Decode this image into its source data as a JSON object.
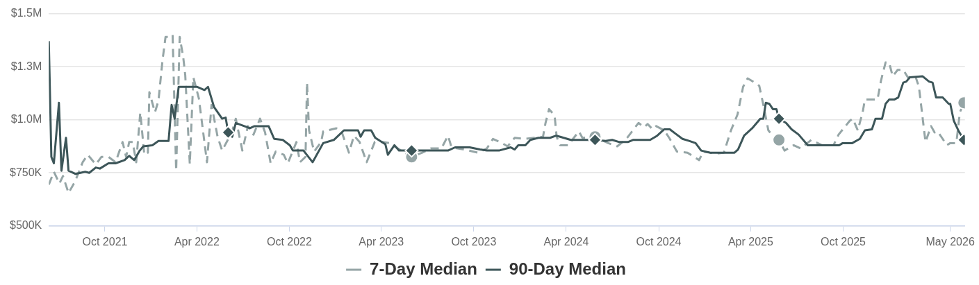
{
  "chart_data": {
    "type": "line",
    "xlim": [
      "2021-06-12",
      "2026-05-30"
    ],
    "ylim": [
      500000,
      1500000
    ],
    "yticks": [
      {
        "value": 500000,
        "label": "$500K"
      },
      {
        "value": 750000,
        "label": "$750K"
      },
      {
        "value": 1000000,
        "label": "$1.0M"
      },
      {
        "value": 1250000,
        "label": "$1.3M"
      },
      {
        "value": 1500000,
        "label": "$1.5M"
      }
    ],
    "xticks": [
      {
        "value": "2021-10-01",
        "label": "Oct 2021"
      },
      {
        "value": "2022-04-01",
        "label": "Apr 2022"
      },
      {
        "value": "2022-10-01",
        "label": "Oct 2022"
      },
      {
        "value": "2023-04-01",
        "label": "Apr 2023"
      },
      {
        "value": "2023-10-01",
        "label": "Oct 2023"
      },
      {
        "value": "2024-04-01",
        "label": "Apr 2024"
      },
      {
        "value": "2024-10-01",
        "label": "Oct 2024"
      },
      {
        "value": "2025-04-01",
        "label": "Apr 2025"
      },
      {
        "value": "2025-10-01",
        "label": "Oct 2025"
      },
      {
        "value": "2026-05-01",
        "label": "May 2026"
      }
    ],
    "grid": "y",
    "legend": "bottom",
    "marker": "none",
    "series": [
      {
        "name": "7-Day Median",
        "type": "line",
        "line_style": "dashed",
        "color": "#95a5a6",
        "x": [
          "2021-06-12",
          "2021-06-22",
          "2021-07-03",
          "2021-07-10",
          "2021-07-21",
          "2021-08-03",
          "2021-08-18",
          "2021-08-28",
          "2021-09-13",
          "2021-09-24",
          "2021-10-08",
          "2021-10-22",
          "2021-11-05",
          "2021-11-12",
          "2021-11-18",
          "2021-11-25",
          "2021-12-02",
          "2021-12-10",
          "2021-12-18",
          "2021-12-25",
          "2021-12-28",
          "2022-01-08",
          "2022-01-15",
          "2022-01-23",
          "2022-01-29",
          "2022-02-05",
          "2022-02-12",
          "2022-02-19",
          "2022-02-26",
          "2022-03-05",
          "2022-03-09",
          "2022-03-18",
          "2022-03-25",
          "2022-04-05",
          "2022-04-21",
          "2022-04-30",
          "2022-05-12",
          "2022-05-21",
          "2022-06-09",
          "2022-06-17",
          "2022-06-30",
          "2022-07-11",
          "2022-07-22",
          "2022-08-04",
          "2022-08-14",
          "2022-08-25",
          "2022-09-04",
          "2022-09-20",
          "2022-09-28",
          "2022-10-15",
          "2022-10-22",
          "2022-11-02",
          "2022-11-05",
          "2022-11-09",
          "2022-11-19",
          "2022-12-03",
          "2022-12-07",
          "2023-01-02",
          "2023-01-13",
          "2023-01-27",
          "2023-02-06",
          "2023-02-17",
          "2023-03-03",
          "2023-03-19",
          "2023-04-03",
          "2023-04-17",
          "2023-04-27",
          "2023-05-31",
          "2023-06-21",
          "2023-07-08",
          "2023-07-29",
          "2023-08-11",
          "2023-08-18",
          "2023-09-12",
          "2023-10-09",
          "2023-10-27",
          "2023-11-08",
          "2023-11-22",
          "2023-12-07",
          "2023-12-21",
          "2024-01-10",
          "2024-01-28",
          "2024-02-15",
          "2024-02-20",
          "2024-02-27",
          "2024-03-09",
          "2024-03-13",
          "2024-03-20",
          "2024-04-05",
          "2024-04-16",
          "2024-04-26",
          "2024-05-03",
          "2024-05-28",
          "2024-06-23",
          "2024-07-11",
          "2024-07-29",
          "2024-08-22",
          "2024-09-02",
          "2024-09-09",
          "2024-09-19",
          "2024-09-26",
          "2024-10-12",
          "2024-10-23",
          "2024-11-06",
          "2024-11-27",
          "2024-12-20",
          "2024-12-28",
          "2025-01-21",
          "2025-02-07",
          "2025-02-21",
          "2025-03-06",
          "2025-03-17",
          "2025-03-26",
          "2025-04-09",
          "2025-04-18",
          "2025-04-27",
          "2025-05-06",
          "2025-05-20",
          "2025-05-27",
          "2025-06-07",
          "2025-06-25",
          "2025-07-09",
          "2025-07-30",
          "2025-08-20",
          "2025-09-12",
          "2025-09-22",
          "2025-10-14",
          "2025-10-20",
          "2025-10-30",
          "2025-11-09",
          "2025-11-13",
          "2025-12-08",
          "2025-12-15",
          "2025-12-24",
          "2025-12-31",
          "2026-01-07",
          "2026-01-17",
          "2026-01-28",
          "2026-02-06",
          "2026-02-21",
          "2026-02-28",
          "2026-03-13",
          "2026-03-24",
          "2026-03-31",
          "2026-04-06",
          "2026-04-16",
          "2026-04-24",
          "2026-05-01",
          "2026-05-13",
          "2026-05-20",
          "2026-05-28"
        ],
        "values": [
          695000,
          755000,
          700000,
          735000,
          655000,
          710000,
          800000,
          835000,
          790000,
          825000,
          825000,
          800000,
          895000,
          825000,
          895000,
          895000,
          800000,
          1035000,
          835000,
          845000,
          1130000,
          1035000,
          1090000,
          1280000,
          1390000,
          1390000,
          1400000,
          760000,
          1390000,
          1295000,
          1210000,
          790000,
          1200000,
          1100000,
          800000,
          1070000,
          920000,
          855000,
          940000,
          1005000,
          855000,
          970000,
          930000,
          1005000,
          940000,
          795000,
          850000,
          835000,
          795000,
          895000,
          800000,
          825000,
          1175000,
          950000,
          850000,
          895000,
          945000,
          960000,
          940000,
          845000,
          925000,
          895000,
          800000,
          895000,
          895000,
          890000,
          875000,
          825000,
          845000,
          865000,
          865000,
          925000,
          870000,
          860000,
          845000,
          865000,
          910000,
          895000,
          875000,
          915000,
          910000,
          915000,
          920000,
          985000,
          1050000,
          1020000,
          920000,
          880000,
          880000,
          915000,
          945000,
          915000,
          920000,
          890000,
          875000,
          910000,
          985000,
          965000,
          980000,
          955000,
          970000,
          950000,
          910000,
          850000,
          845000,
          810000,
          850000,
          840000,
          845000,
          950000,
          1025000,
          1155000,
          1195000,
          1175000,
          1160000,
          1060000,
          950000,
          910000,
          905000,
          855000,
          880000,
          865000,
          905000,
          880000,
          880000,
          930000,
          995000,
          1005000,
          950000,
          1040000,
          1095000,
          1095000,
          1185000,
          1270000,
          1270000,
          1205000,
          1235000,
          1235000,
          1200000,
          1205000,
          1155000,
          895000,
          970000,
          940000,
          945000,
          910000,
          880000,
          890000,
          890000,
          1035000,
          1080000
        ]
      },
      {
        "name": "90-Day Median",
        "type": "line",
        "line_style": "solid",
        "color": "#3d5659",
        "x": [
          "2021-06-12",
          "2021-06-17",
          "2021-06-22",
          "2021-07-02",
          "2021-07-07",
          "2021-07-16",
          "2021-07-21",
          "2021-08-04",
          "2021-08-23",
          "2021-08-31",
          "2021-09-13",
          "2021-09-21",
          "2021-10-08",
          "2021-10-22",
          "2021-11-09",
          "2021-11-18",
          "2021-11-28",
          "2021-12-09",
          "2021-12-16",
          "2022-01-03",
          "2022-01-15",
          "2022-02-04",
          "2022-02-10",
          "2022-02-16",
          "2022-02-24",
          "2022-04-01",
          "2022-04-16",
          "2022-04-23",
          "2022-05-05",
          "2022-05-21",
          "2022-05-28",
          "2022-06-02",
          "2022-06-10",
          "2022-06-17",
          "2022-07-15",
          "2022-07-24",
          "2022-08-21",
          "2022-09-01",
          "2022-09-18",
          "2022-10-02",
          "2022-10-08",
          "2022-10-29",
          "2022-11-16",
          "2022-12-07",
          "2022-12-28",
          "2023-01-06",
          "2023-01-17",
          "2023-02-14",
          "2023-02-19",
          "2023-02-26",
          "2023-03-12",
          "2023-03-20",
          "2023-04-09",
          "2023-04-14",
          "2023-04-27",
          "2023-05-06",
          "2023-05-15",
          "2023-05-31",
          "2023-06-21",
          "2023-08-11",
          "2023-08-25",
          "2023-09-23",
          "2023-10-13",
          "2023-10-27",
          "2023-11-20",
          "2023-12-13",
          "2023-12-21",
          "2023-12-28",
          "2024-01-11",
          "2024-01-21",
          "2024-02-06",
          "2024-02-29",
          "2024-03-12",
          "2024-03-20",
          "2024-04-10",
          "2024-05-13",
          "2024-05-24",
          "2024-05-28",
          "2024-06-18",
          "2024-07-01",
          "2024-07-15",
          "2024-08-01",
          "2024-08-11",
          "2024-09-14",
          "2024-09-28",
          "2024-10-12",
          "2024-10-23",
          "2024-11-03",
          "2024-11-17",
          "2024-12-01",
          "2024-12-13",
          "2024-12-24",
          "2025-01-11",
          "2025-01-30",
          "2025-02-28",
          "2025-03-07",
          "2025-03-19",
          "2025-04-04",
          "2025-04-20",
          "2025-04-26",
          "2025-05-01",
          "2025-05-08",
          "2025-05-15",
          "2025-05-22",
          "2025-05-27",
          "2025-06-10",
          "2025-06-21",
          "2025-07-05",
          "2025-07-23",
          "2025-09-23",
          "2025-09-30",
          "2025-10-19",
          "2025-11-03",
          "2025-11-13",
          "2025-11-27",
          "2025-12-04",
          "2025-12-17",
          "2025-12-24",
          "2025-12-31",
          "2026-01-10",
          "2026-01-18",
          "2026-01-28",
          "2026-02-03",
          "2026-02-10",
          "2026-03-07",
          "2026-03-20",
          "2026-03-27",
          "2026-04-03",
          "2026-04-16",
          "2026-04-28",
          "2026-05-01",
          "2026-05-08",
          "2026-05-18",
          "2026-05-28"
        ],
        "values": [
          1370000,
          825000,
          795000,
          1080000,
          760000,
          915000,
          760000,
          745000,
          755000,
          750000,
          775000,
          770000,
          795000,
          795000,
          810000,
          830000,
          810000,
          855000,
          875000,
          880000,
          900000,
          900000,
          1070000,
          1005000,
          1155000,
          1155000,
          1140000,
          1155000,
          1060000,
          1005000,
          1010000,
          940000,
          920000,
          985000,
          960000,
          970000,
          970000,
          910000,
          905000,
          880000,
          855000,
          855000,
          800000,
          890000,
          905000,
          925000,
          950000,
          950000,
          920000,
          950000,
          950000,
          915000,
          885000,
          835000,
          880000,
          855000,
          855000,
          855000,
          855000,
          855000,
          870000,
          870000,
          860000,
          855000,
          855000,
          870000,
          860000,
          880000,
          880000,
          905000,
          915000,
          915000,
          925000,
          920000,
          905000,
          905000,
          905000,
          905000,
          900000,
          905000,
          895000,
          895000,
          905000,
          905000,
          925000,
          955000,
          955000,
          935000,
          910000,
          900000,
          890000,
          855000,
          845000,
          845000,
          845000,
          860000,
          925000,
          960000,
          1005000,
          1005000,
          1080000,
          1075000,
          1050000,
          1050000,
          1005000,
          985000,
          955000,
          930000,
          880000,
          880000,
          890000,
          890000,
          910000,
          950000,
          955000,
          1005000,
          1005000,
          1075000,
          1095000,
          1095000,
          1105000,
          1175000,
          1180000,
          1200000,
          1205000,
          1180000,
          1175000,
          1105000,
          1105000,
          1075000,
          1075000,
          995000,
          945000,
          905000
        ]
      },
      {
        "type": "scatter",
        "marker": "circle",
        "color": "#95a5a6",
        "x": [
          "2023-05-31",
          "2024-05-28",
          "2025-05-27",
          "2026-05-28"
        ],
        "values": [
          825000,
          920000,
          905000,
          1080000
        ]
      },
      {
        "type": "scatter",
        "marker": "diamond",
        "color": "#3d5659",
        "x": [
          "2022-06-02",
          "2023-05-31",
          "2024-05-28",
          "2025-05-27",
          "2026-05-28"
        ],
        "values": [
          940000,
          855000,
          905000,
          1005000,
          905000
        ]
      }
    ]
  }
}
